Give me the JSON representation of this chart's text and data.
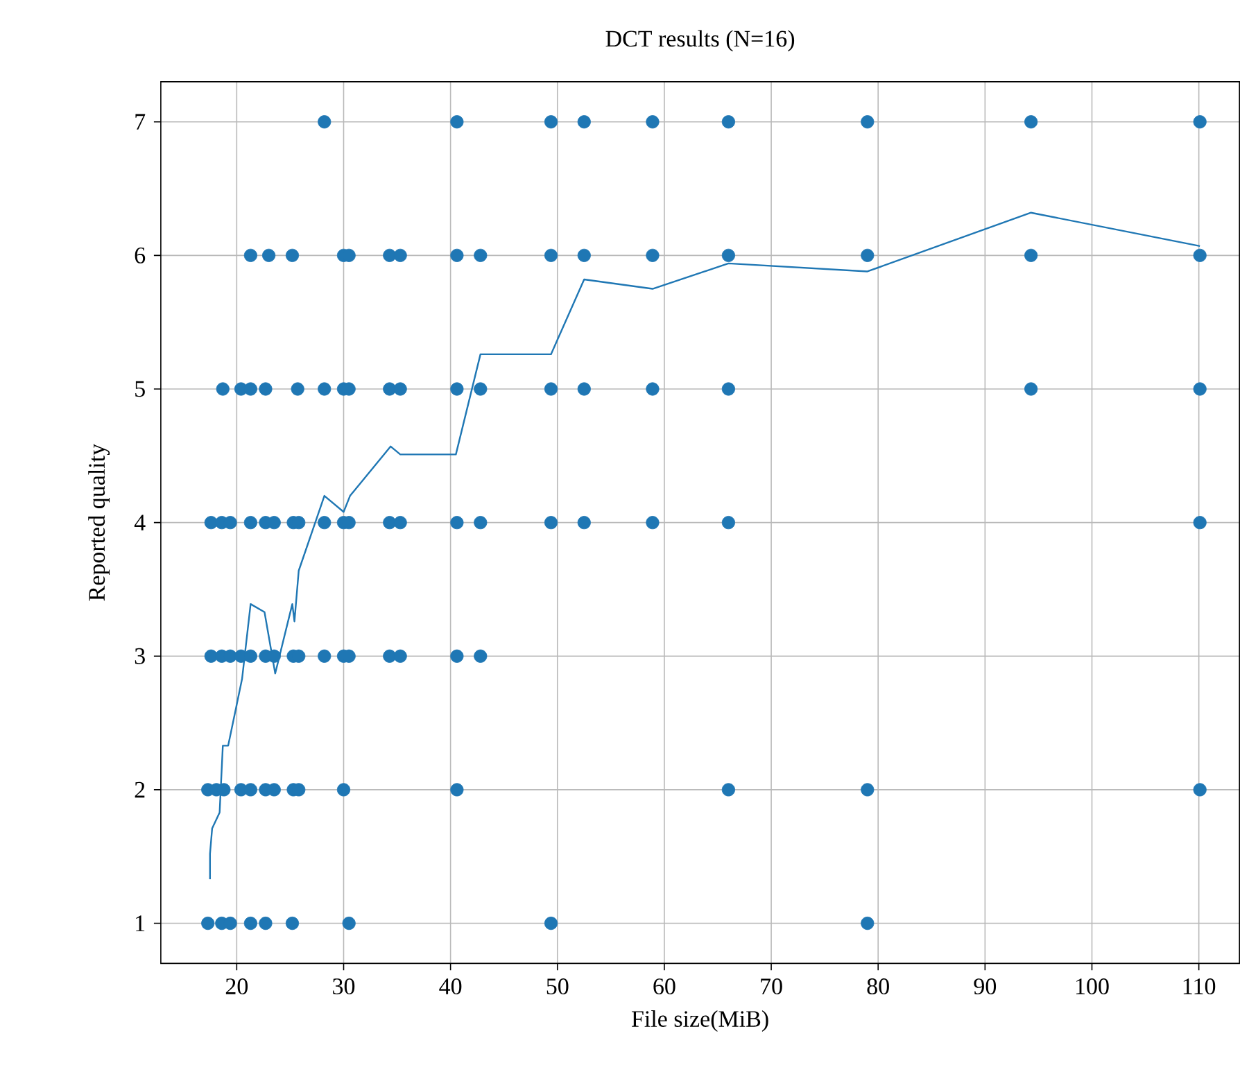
{
  "chart_data": {
    "type": "scatter",
    "title": "DCT results (N=16)",
    "xlabel": "File size(MiB)",
    "ylabel": "Reported quality",
    "xlim": [
      12.9,
      113.8
    ],
    "ylim": [
      0.7,
      7.3
    ],
    "xticks": [
      20,
      30,
      40,
      50,
      60,
      70,
      80,
      90,
      100,
      110
    ],
    "yticks": [
      1,
      2,
      3,
      4,
      5,
      6,
      7
    ],
    "grid": true,
    "series": [
      {
        "marker": "circle",
        "color": "#1f77b4",
        "x": [
          17.3,
          18.6,
          19.4,
          21.3,
          22.7,
          25.2,
          30.5,
          49.4,
          79.0,
          17.3,
          18.1,
          18.8,
          20.4,
          21.3,
          22.7,
          23.5,
          25.3,
          25.8,
          30.0,
          40.6,
          66.0,
          79.0,
          110.1,
          17.6,
          18.6,
          19.4,
          20.4,
          21.3,
          22.7,
          23.5,
          25.3,
          25.8,
          28.2,
          30.0,
          30.5,
          34.3,
          35.3,
          40.6,
          42.8,
          17.6,
          18.6,
          19.4,
          21.3,
          22.7,
          23.5,
          25.3,
          25.8,
          28.2,
          30.0,
          30.5,
          34.3,
          35.3,
          40.6,
          42.8,
          49.4,
          52.5,
          58.9,
          66.0,
          110.1,
          18.7,
          20.4,
          21.3,
          22.7,
          25.7,
          28.2,
          30.0,
          30.5,
          34.3,
          35.3,
          40.6,
          42.8,
          49.4,
          52.5,
          58.9,
          66.0,
          94.3,
          110.1,
          21.3,
          23.0,
          25.2,
          30.0,
          30.5,
          34.3,
          35.3,
          40.6,
          42.8,
          49.4,
          52.5,
          58.9,
          66.0,
          79.0,
          94.3,
          110.1,
          28.2,
          40.6,
          49.4,
          52.5,
          58.9,
          66.0,
          79.0,
          94.3,
          110.1
        ],
        "values": [
          1,
          1,
          1,
          1,
          1,
          1,
          1,
          1,
          1,
          2,
          2,
          2,
          2,
          2,
          2,
          2,
          2,
          2,
          2,
          2,
          2,
          2,
          2,
          3,
          3,
          3,
          3,
          3,
          3,
          3,
          3,
          3,
          3,
          3,
          3,
          3,
          3,
          3,
          3,
          4,
          4,
          4,
          4,
          4,
          4,
          4,
          4,
          4,
          4,
          4,
          4,
          4,
          4,
          4,
          4,
          4,
          4,
          4,
          4,
          5,
          5,
          5,
          5,
          5,
          5,
          5,
          5,
          5,
          5,
          5,
          5,
          5,
          5,
          5,
          5,
          5,
          5,
          6,
          6,
          6,
          6,
          6,
          6,
          6,
          6,
          6,
          6,
          6,
          6,
          6,
          6,
          6,
          6,
          7,
          7,
          7,
          7,
          7,
          7,
          7,
          7,
          7
        ]
      },
      {
        "type": "line",
        "marker": "none",
        "color": "#1f77b4",
        "x": [
          17.5,
          17.5,
          17.7,
          18.4,
          18.7,
          19.2,
          20.5,
          21.3,
          22.6,
          23.6,
          25.2,
          25.4,
          25.8,
          28.2,
          30.0,
          30.6,
          34.4,
          35.3,
          40.5,
          42.8,
          49.4,
          52.5,
          58.9,
          66.0,
          79.0,
          94.3,
          110.1
        ],
        "values": [
          1.33,
          1.52,
          1.71,
          1.83,
          2.33,
          2.33,
          2.83,
          3.39,
          3.33,
          2.87,
          3.39,
          3.26,
          3.64,
          4.2,
          4.08,
          4.2,
          4.57,
          4.51,
          4.51,
          5.26,
          5.26,
          5.82,
          5.75,
          5.94,
          5.88,
          6.32,
          6.07
        ]
      }
    ]
  }
}
